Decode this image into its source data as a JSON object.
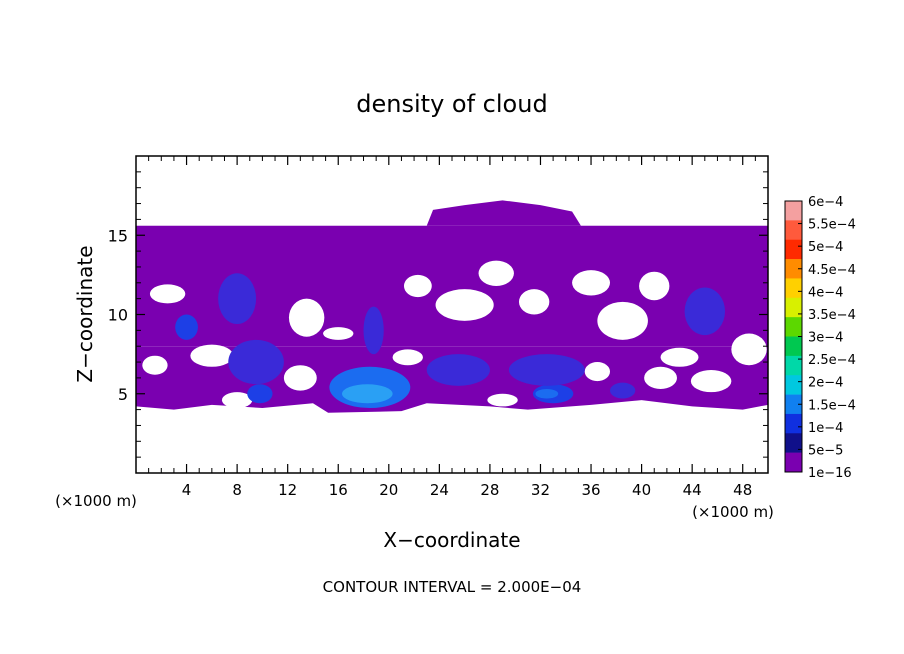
{
  "chart_data": {
    "type": "heatmap",
    "title": "density of cloud",
    "xlabel": "X−coordinate",
    "ylabel": "Z−coordinate",
    "x_unit_left": "(×1000 m)",
    "x_unit_right": "(×1000 m)",
    "xlim": [
      0,
      50
    ],
    "ylim": [
      0,
      20
    ],
    "x_ticks": [
      4,
      8,
      12,
      16,
      20,
      24,
      28,
      32,
      36,
      40,
      44,
      48
    ],
    "y_ticks": [
      5,
      10,
      15
    ],
    "footer": "CONTOUR INTERVAL = 2.000E−04",
    "colorbar": {
      "labels": [
        "6e−4",
        "5.5e−4",
        "5e−4",
        "4.5e−4",
        "4e−4",
        "3.5e−4",
        "3e−4",
        "2.5e−4",
        "2e−4",
        "1.5e−4",
        "1e−4",
        "5e−5",
        "1e−16"
      ],
      "colors": [
        "#f4a0a0",
        "#ff5a3c",
        "#ff2a00",
        "#ff8c00",
        "#ffd000",
        "#d8f000",
        "#5cd800",
        "#00c850",
        "#00d8a8",
        "#00c8e0",
        "#1080f0",
        "#1030e0",
        "#10108a",
        "#7a00b0"
      ]
    },
    "cloud_base_color": "#7a00b0",
    "approx_cloud_extent": {
      "x_range": [
        0,
        50
      ],
      "z_range": [
        3.8,
        17.2
      ],
      "main_layer_top_z": 15.6
    },
    "blobs": [
      {
        "x": 18.5,
        "z": 5.4,
        "rx": 3.2,
        "rz": 1.3,
        "level": 3
      },
      {
        "x": 18.3,
        "z": 5.0,
        "rx": 2.0,
        "rz": 0.6,
        "level": 4
      },
      {
        "x": 33.0,
        "z": 5.0,
        "rx": 1.6,
        "rz": 0.6,
        "level": 2
      },
      {
        "x": 32.5,
        "z": 5.0,
        "rx": 0.9,
        "rz": 0.3,
        "level": 3
      },
      {
        "x": 9.8,
        "z": 5.0,
        "rx": 1.0,
        "rz": 0.6,
        "level": 2
      },
      {
        "x": 4.0,
        "z": 9.2,
        "rx": 0.9,
        "rz": 0.8,
        "level": 2
      },
      {
        "x": 8.0,
        "z": 11.0,
        "rx": 1.5,
        "rz": 1.6,
        "level": 1
      },
      {
        "x": 9.5,
        "z": 7.0,
        "rx": 2.2,
        "rz": 1.4,
        "level": 1
      },
      {
        "x": 25.5,
        "z": 6.5,
        "rx": 2.5,
        "rz": 1.0,
        "level": 1
      },
      {
        "x": 32.5,
        "z": 6.5,
        "rx": 3.0,
        "rz": 1.0,
        "level": 1
      },
      {
        "x": 18.8,
        "z": 9.0,
        "rx": 0.8,
        "rz": 1.5,
        "level": 1
      },
      {
        "x": 45.0,
        "z": 10.2,
        "rx": 1.6,
        "rz": 1.5,
        "level": 1
      },
      {
        "x": 38.5,
        "z": 5.2,
        "rx": 1.0,
        "rz": 0.5,
        "level": 1
      }
    ]
  }
}
